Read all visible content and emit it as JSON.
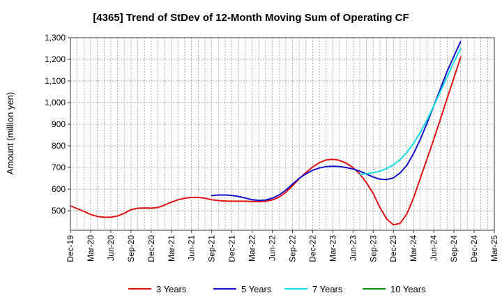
{
  "chart_data": {
    "type": "line",
    "title": "[4365]  Trend of StDev of 12-Month Moving Sum of Operating CF",
    "ylabel": "Amount (million yen)",
    "xlabel": "",
    "ylim": [
      410,
      1300
    ],
    "yticks": [
      500,
      600,
      700,
      800,
      900,
      "1,000",
      "1,100",
      "1,200",
      "1,300"
    ],
    "ytick_values": [
      500,
      600,
      700,
      800,
      900,
      1000,
      1100,
      1200,
      1300
    ],
    "x_ticks": [
      "Dec-19",
      "Mar-20",
      "Jun-20",
      "Sep-20",
      "Dec-20",
      "Mar-21",
      "Jun-21",
      "Sep-21",
      "Dec-21",
      "Mar-22",
      "Jun-22",
      "Sep-22",
      "Dec-22",
      "Mar-23",
      "Jun-23",
      "Sep-23",
      "Dec-23",
      "Mar-24",
      "Jun-24",
      "Sep-24",
      "Dec-24",
      "Mar-25"
    ],
    "grid": true,
    "legend_position": "bottom",
    "series": [
      {
        "name": "3 Years",
        "color": "#dd1111",
        "points": [
          [
            "Dec-19",
            523
          ],
          [
            "Jan-20",
            510
          ],
          [
            "Feb-20",
            497
          ],
          [
            "Mar-20",
            483
          ],
          [
            "Apr-20",
            474
          ],
          [
            "May-20",
            470
          ],
          [
            "Jun-20",
            470
          ],
          [
            "Jul-20",
            476
          ],
          [
            "Aug-20",
            488
          ],
          [
            "Sep-20",
            505
          ],
          [
            "Oct-20",
            512
          ],
          [
            "Nov-20",
            513
          ],
          [
            "Dec-20",
            512
          ],
          [
            "Jan-21",
            515
          ],
          [
            "Feb-21",
            526
          ],
          [
            "Mar-21",
            540
          ],
          [
            "Apr-21",
            551
          ],
          [
            "May-21",
            558
          ],
          [
            "Jun-21",
            562
          ],
          [
            "Jul-21",
            562
          ],
          [
            "Aug-21",
            558
          ],
          [
            "Sep-21",
            551
          ],
          [
            "Oct-21",
            547
          ],
          [
            "Nov-21",
            545
          ],
          [
            "Dec-21",
            544
          ],
          [
            "Jan-22",
            544
          ],
          [
            "Feb-22",
            544
          ],
          [
            "Mar-22",
            543
          ],
          [
            "Apr-22",
            542
          ],
          [
            "May-22",
            544
          ],
          [
            "Jun-22",
            550
          ],
          [
            "Jul-22",
            563
          ],
          [
            "Aug-22",
            585
          ],
          [
            "Sep-22",
            615
          ],
          [
            "Oct-22",
            648
          ],
          [
            "Nov-22",
            677
          ],
          [
            "Dec-22",
            702
          ],
          [
            "Jan-23",
            722
          ],
          [
            "Feb-23",
            735
          ],
          [
            "Mar-23",
            738
          ],
          [
            "Apr-23",
            733
          ],
          [
            "May-23",
            720
          ],
          [
            "Jun-23",
            700
          ],
          [
            "Jul-23",
            670
          ],
          [
            "Aug-23",
            630
          ],
          [
            "Sep-23",
            580
          ],
          [
            "Oct-23",
            515
          ],
          [
            "Nov-23",
            462
          ],
          [
            "Dec-23",
            435
          ],
          [
            "Jan-24",
            442
          ],
          [
            "Feb-24",
            485
          ],
          [
            "Mar-24",
            560
          ],
          [
            "Apr-24",
            650
          ],
          [
            "May-24",
            740
          ],
          [
            "Jun-24",
            830
          ],
          [
            "Jul-24",
            925
          ],
          [
            "Aug-24",
            1020
          ],
          [
            "Sep-24",
            1115
          ],
          [
            "Oct-24",
            1210
          ]
        ]
      },
      {
        "name": "5 Years",
        "color": "#1111cc",
        "points": [
          [
            "Sep-21",
            570
          ],
          [
            "Oct-21",
            573
          ],
          [
            "Nov-21",
            573
          ],
          [
            "Dec-21",
            571
          ],
          [
            "Jan-22",
            566
          ],
          [
            "Feb-22",
            559
          ],
          [
            "Mar-22",
            551
          ],
          [
            "Apr-22",
            548
          ],
          [
            "May-22",
            550
          ],
          [
            "Jun-22",
            558
          ],
          [
            "Jul-22",
            573
          ],
          [
            "Aug-22",
            595
          ],
          [
            "Sep-22",
            623
          ],
          [
            "Oct-22",
            650
          ],
          [
            "Nov-22",
            671
          ],
          [
            "Dec-22",
            687
          ],
          [
            "Jan-23",
            698
          ],
          [
            "Feb-23",
            704
          ],
          [
            "Mar-23",
            706
          ],
          [
            "Apr-23",
            704
          ],
          [
            "May-23",
            700
          ],
          [
            "Jun-23",
            693
          ],
          [
            "Jul-23",
            683
          ],
          [
            "Aug-23",
            670
          ],
          [
            "Sep-23",
            656
          ],
          [
            "Oct-23",
            646
          ],
          [
            "Nov-23",
            644
          ],
          [
            "Dec-23",
            652
          ],
          [
            "Jan-24",
            675
          ],
          [
            "Feb-24",
            710
          ],
          [
            "Mar-24",
            765
          ],
          [
            "Apr-24",
            830
          ],
          [
            "May-24",
            905
          ],
          [
            "Jun-24",
            985
          ],
          [
            "Jul-24",
            1065
          ],
          [
            "Aug-24",
            1145
          ],
          [
            "Sep-24",
            1215
          ],
          [
            "Oct-24",
            1282
          ]
        ]
      },
      {
        "name": "7 Years",
        "color": "#11dddd",
        "points": [
          [
            "Jul-23",
            668
          ],
          [
            "Aug-23",
            671
          ],
          [
            "Sep-23",
            676
          ],
          [
            "Oct-23",
            683
          ],
          [
            "Nov-23",
            695
          ],
          [
            "Dec-23",
            712
          ],
          [
            "Jan-24",
            737
          ],
          [
            "Feb-24",
            770
          ],
          [
            "Mar-24",
            812
          ],
          [
            "Apr-24",
            862
          ],
          [
            "May-24",
            920
          ],
          [
            "Jun-24",
            985
          ],
          [
            "Jul-24",
            1052
          ],
          [
            "Aug-24",
            1120
          ],
          [
            "Sep-24",
            1188
          ],
          [
            "Oct-24",
            1250
          ]
        ]
      },
      {
        "name": "10 Years",
        "color": "#118811",
        "points": []
      }
    ]
  }
}
